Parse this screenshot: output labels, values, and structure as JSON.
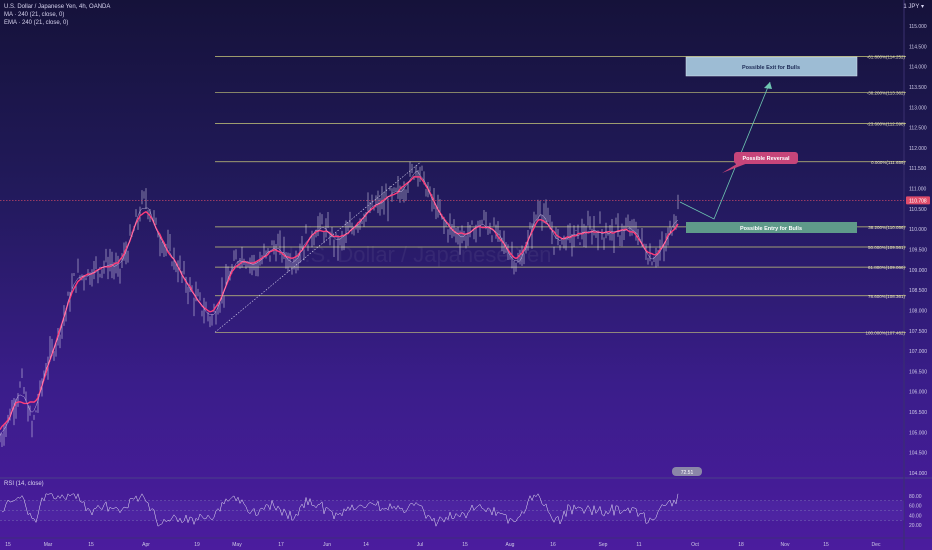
{
  "header": {
    "symbol": "U.S. Dollar / Japanese Yen, 4h, OANDA",
    "indicators": [
      "MA · 240 (21, close, 0)",
      "EMA · 240 (21, close, 0)"
    ],
    "currency": "1 JPY ▾"
  },
  "watermark": "U.S. Dollar / Japanese Yen",
  "price_axis": {
    "labels": [
      "115.000",
      "114.500",
      "114.000",
      "113.500",
      "113.000",
      "112.500",
      "112.000",
      "111.500",
      "111.000",
      "110.500",
      "110.000",
      "109.500",
      "109.000",
      "108.500",
      "108.000",
      "107.500",
      "107.000",
      "106.500",
      "106.000",
      "105.500",
      "105.000",
      "104.500",
      "104.000"
    ],
    "current_price": "110.708",
    "current_price_color": "#e04c6a"
  },
  "time_axis": {
    "labels": [
      "15",
      "Mar",
      "15",
      "Apr",
      "19",
      "May",
      "17",
      "Jun",
      "14",
      "Jul",
      "15",
      "Aug",
      "16",
      "Sep",
      "11",
      "Oct",
      "18",
      "Nov",
      "15",
      "Dec"
    ]
  },
  "fib_levels": [
    {
      "label": "-61.800%(114.252)",
      "price": 114.252
    },
    {
      "label": "-38.200%(113.362)",
      "price": 113.362
    },
    {
      "label": "-23.600%(112.598)",
      "price": 112.598
    },
    {
      "label": "0.000%(111.659)",
      "price": 111.659
    },
    {
      "label": "38.200%(110.056)",
      "price": 110.056
    },
    {
      "label": "50.000%(109.561)",
      "price": 109.561
    },
    {
      "label": "61.800%(109.066)",
      "price": 109.066
    },
    {
      "label": "78.600%(108.361)",
      "price": 108.361
    },
    {
      "label": "100.000%(107.462)",
      "price": 107.462
    }
  ],
  "annotations": {
    "exit": "Possible Exit for Bulls",
    "reversal": "Possible Reversal",
    "entry": "Possible Entry for Bulls"
  },
  "rsi": {
    "label": "RSI (14, close)",
    "axis_labels": [
      "80.00",
      "60.00",
      "40.00",
      "20.00"
    ],
    "badge": "72.51"
  },
  "colors": {
    "candle": "#e8e4f5",
    "ma": "#ff3d7a",
    "ema": "#f0e0ff",
    "fib": "#c8c87a",
    "exit_box": "#9dbcd4",
    "entry_box": "#5f9a8a",
    "reversal_bubble": "#c7457a",
    "arrow": "#6fc7b2"
  }
}
